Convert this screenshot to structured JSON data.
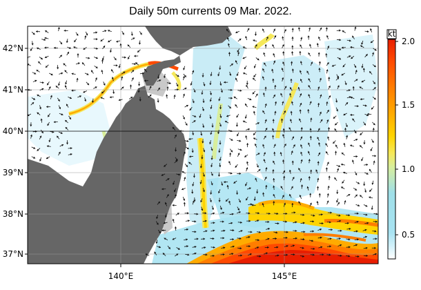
{
  "title": "Daily 50m currents 09 Mar. 2022.",
  "map": {
    "lon_range": [
      136.5,
      148.5
    ],
    "lat_range": [
      36.6,
      42.6
    ],
    "lon_ticks": [
      {
        "value": 140,
        "label": "140°E"
      },
      {
        "value": 145,
        "label": "145°E"
      }
    ],
    "lat_ticks": [
      {
        "value": 42,
        "label": "42°N"
      },
      {
        "value": 41,
        "label": "41°N"
      },
      {
        "value": 40,
        "label": "40°N"
      },
      {
        "value": 39,
        "label": "39°N"
      },
      {
        "value": 38,
        "label": "38°N"
      },
      {
        "value": 37,
        "label": "37°N"
      }
    ],
    "land_color": "#666666",
    "shelf_color": "#c9c9c9"
  },
  "colorbar": {
    "unit": "kt",
    "min": 0.2,
    "max": 2.0,
    "ticks": [
      {
        "value": 2.0,
        "label": "2.0"
      },
      {
        "value": 1.5,
        "label": "1.5"
      },
      {
        "value": 1.0,
        "label": "1.0"
      },
      {
        "value": 0.5,
        "label": "0.5"
      }
    ],
    "colors": [
      "#ffffff",
      "#d8f3fb",
      "#a8e3f2",
      "#9fdfe8",
      "#d8ee9c",
      "#f5e85a",
      "#ffd400",
      "#ffab00",
      "#ff7d00",
      "#ff4a00",
      "#e81e00"
    ]
  }
}
